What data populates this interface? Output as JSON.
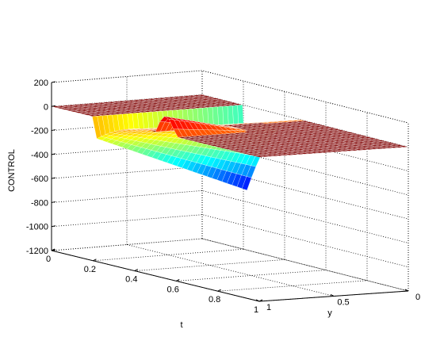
{
  "chart_data": {
    "type": "surface",
    "zlabel": "CONTROL",
    "xlabel": "t",
    "ylabel": "y",
    "zlim": [
      -1200,
      200
    ],
    "xlim": [
      0,
      1
    ],
    "ylim": [
      0,
      1
    ],
    "z_ticks": [
      "200",
      "0",
      "-200",
      "-400",
      "-600",
      "-800",
      "-1000",
      "-1200"
    ],
    "t_ticks": [
      "0",
      "0.2",
      "0.4",
      "0.6",
      "0.8",
      "1"
    ],
    "y_ticks": [
      "0",
      "0.5",
      "1"
    ],
    "grid": true,
    "colormap": "jet",
    "surface": {
      "plateau_value": 0,
      "dip_t_range": [
        0.2,
        0.5
      ],
      "dip_min_value": -800,
      "dip_min_at": {
        "t": 0.2,
        "y": 1
      },
      "ridge_max_value": 150,
      "ridge_t_range": [
        0.5,
        0.6
      ],
      "ridge_y_range": [
        0,
        0.5
      ]
    },
    "colors": {
      "plateau": "#7f0000",
      "mesh": "#ffffff",
      "grid": "#000000"
    }
  }
}
